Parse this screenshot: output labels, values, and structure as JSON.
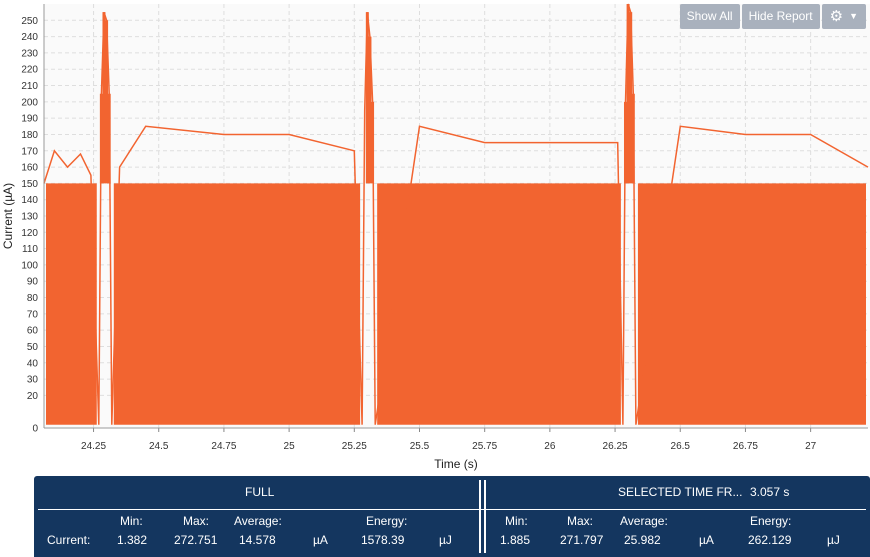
{
  "chart_data": {
    "type": "line",
    "title": "",
    "xlabel": "Time (s)",
    "ylabel": "Current (µA)",
    "xlim": [
      24.06,
      27.22
    ],
    "ylim": [
      0,
      260
    ],
    "grid": true,
    "x_ticks": [
      "24.25",
      "24.5",
      "24.75",
      "25",
      "25.25",
      "25.5",
      "25.75",
      "26",
      "26.25",
      "26.5",
      "26.75",
      "27"
    ],
    "y_ticks": [
      "0",
      "20",
      "30",
      "40",
      "50",
      "60",
      "70",
      "80",
      "90",
      "100",
      "110",
      "120",
      "130",
      "140",
      "150",
      "160",
      "170",
      "180",
      "190",
      "200",
      "210",
      "220",
      "230",
      "240",
      "250"
    ],
    "series": [
      {
        "color": "#f26430",
        "description_points": [
          {
            "x": 24.06,
            "y": 150
          },
          {
            "x": 24.1,
            "y": 170
          },
          {
            "x": 24.15,
            "y": 160
          },
          {
            "x": 24.2,
            "y": 168
          },
          {
            "x": 24.24,
            "y": 155
          },
          {
            "x": 24.27,
            "y": 2
          },
          {
            "x": 24.28,
            "y": 205
          },
          {
            "x": 24.29,
            "y": 255
          },
          {
            "x": 24.3,
            "y": 250
          },
          {
            "x": 24.31,
            "y": 205
          },
          {
            "x": 24.32,
            "y": 2
          },
          {
            "x": 24.35,
            "y": 160
          },
          {
            "x": 24.45,
            "y": 185
          },
          {
            "x": 24.75,
            "y": 180
          },
          {
            "x": 25.0,
            "y": 180
          },
          {
            "x": 25.25,
            "y": 170
          },
          {
            "x": 25.28,
            "y": 2
          },
          {
            "x": 25.29,
            "y": 195
          },
          {
            "x": 25.3,
            "y": 255
          },
          {
            "x": 25.31,
            "y": 240
          },
          {
            "x": 25.32,
            "y": 200
          },
          {
            "x": 25.33,
            "y": 2
          },
          {
            "x": 25.5,
            "y": 185
          },
          {
            "x": 25.75,
            "y": 175
          },
          {
            "x": 26.0,
            "y": 175
          },
          {
            "x": 26.26,
            "y": 175
          },
          {
            "x": 26.28,
            "y": 2
          },
          {
            "x": 26.29,
            "y": 200
          },
          {
            "x": 26.3,
            "y": 260
          },
          {
            "x": 26.31,
            "y": 255
          },
          {
            "x": 26.32,
            "y": 205
          },
          {
            "x": 26.33,
            "y": 2
          },
          {
            "x": 26.5,
            "y": 185
          },
          {
            "x": 26.75,
            "y": 180
          },
          {
            "x": 27.0,
            "y": 180
          },
          {
            "x": 27.22,
            "y": 160
          }
        ],
        "baseline": 2,
        "dense_level": 150
      }
    ]
  },
  "toolbar": {
    "show_all": "Show All",
    "hide_report": "Hide Report",
    "settings_icon": "gear-icon",
    "dropdown_icon": "caret-down-icon"
  },
  "report": {
    "full": {
      "title": "FULL",
      "row_label": "Current:",
      "min_label": "Min:",
      "min": "1.382",
      "max_label": "Max:",
      "max": "272.751",
      "avg_label": "Average:",
      "avg": "14.578",
      "unit_current": "µA",
      "energy_label": "Energy:",
      "energy": "1578.39",
      "unit_energy": "µJ"
    },
    "selected": {
      "title": "SELECTED TIME FR...",
      "duration": "3.057 s",
      "min_label": "Min:",
      "min": "1.885",
      "max_label": "Max:",
      "max": "271.797",
      "avg_label": "Average:",
      "avg": "25.982",
      "unit_current": "µA",
      "energy_label": "Energy:",
      "energy": "262.129",
      "unit_energy": "µJ"
    }
  }
}
